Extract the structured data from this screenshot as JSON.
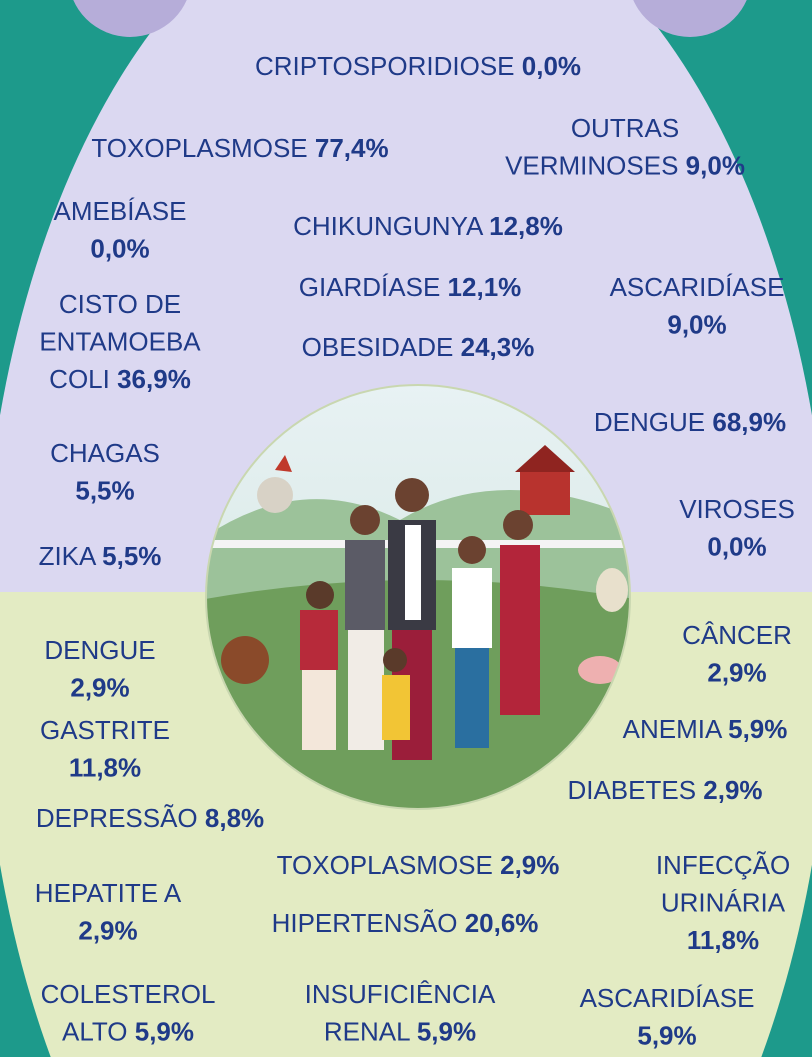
{
  "items": [
    {
      "lines": [
        "CRIPTOSPORIDIOSE"
      ],
      "value": "0,0%"
    },
    {
      "lines": [
        "TOXOPLASMOSE"
      ],
      "value": "77,4%"
    },
    {
      "lines": [
        "OUTRAS",
        "VERMINOSES"
      ],
      "value": "9,0%"
    },
    {
      "lines": [
        "AMEBÍASE"
      ],
      "value": "0,0%"
    },
    {
      "lines": [
        "CHIKUNGUNYA"
      ],
      "value": "12,8%"
    },
    {
      "lines": [
        "GIARDÍASE"
      ],
      "value": "12,1%"
    },
    {
      "lines": [
        "ASCARIDÍASE"
      ],
      "value": "9,0%"
    },
    {
      "lines": [
        "CISTO DE",
        "ENTAMOEBA",
        "COLI"
      ],
      "value": "36,9%"
    },
    {
      "lines": [
        "OBESIDADE"
      ],
      "value": "24,3%"
    },
    {
      "lines": [
        "DENGUE"
      ],
      "value": "68,9%"
    },
    {
      "lines": [
        "CHAGAS"
      ],
      "value": "5,5%"
    },
    {
      "lines": [
        "VIROSES"
      ],
      "value": "0,0%"
    },
    {
      "lines": [
        "ZIKA"
      ],
      "value": "5,5%"
    },
    {
      "lines": [
        "DENGUE"
      ],
      "value": "2,9%"
    },
    {
      "lines": [
        "CÂNCER"
      ],
      "value": "2,9%"
    },
    {
      "lines": [
        "GASTRITE"
      ],
      "value": "11,8%"
    },
    {
      "lines": [
        "ANEMIA"
      ],
      "value": "5,9%"
    },
    {
      "lines": [
        "DIABETES"
      ],
      "value": "2,9%"
    },
    {
      "lines": [
        "DEPRESSÃO"
      ],
      "value": "8,8%"
    },
    {
      "lines": [
        "TOXOPLASMOSE"
      ],
      "value": "2,9%"
    },
    {
      "lines": [
        "INFECÇÃO",
        "URINÁRIA"
      ],
      "value": "11,8%"
    },
    {
      "lines": [
        "HEPATITE A"
      ],
      "value": "2,9%"
    },
    {
      "lines": [
        "HIPERTENSÃO"
      ],
      "value": "20,6%"
    },
    {
      "lines": [
        "COLESTEROL",
        "ALTO"
      ],
      "value": "5,9%"
    },
    {
      "lines": [
        "INSUFICIÊNCIA",
        "RENAL"
      ],
      "value": "5,9%"
    },
    {
      "lines": [
        "ASCARIDÍASE"
      ],
      "value": "5,9%"
    }
  ]
}
